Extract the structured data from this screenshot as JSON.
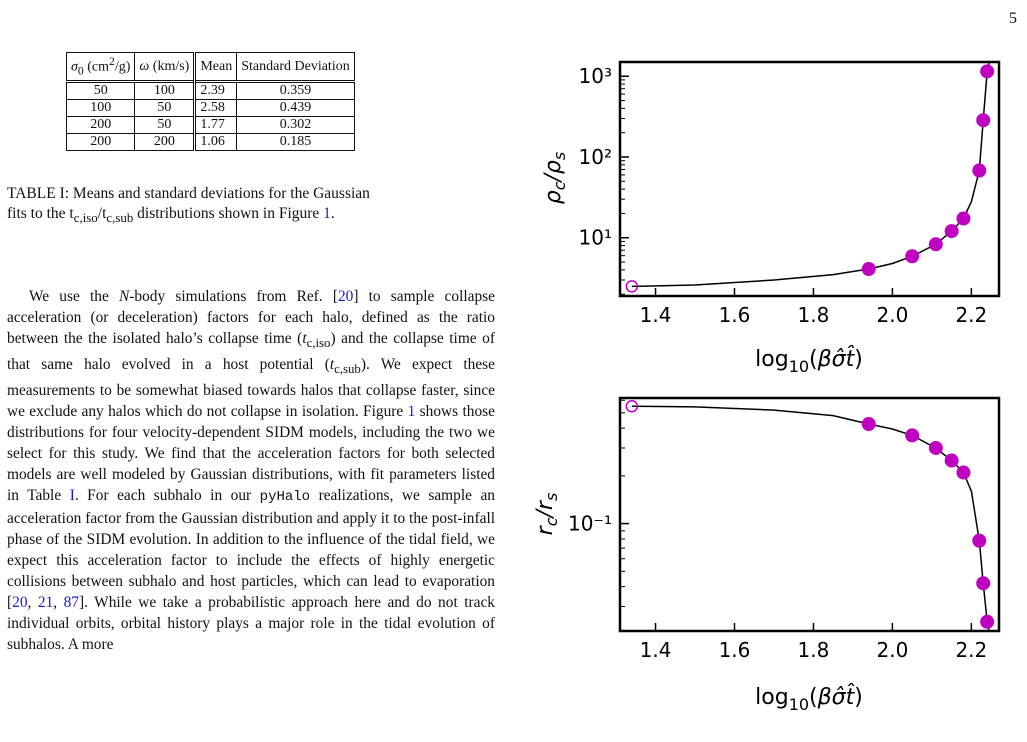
{
  "page_number": "5",
  "table": {
    "headers": [
      "σ0 (cm²/g)",
      "ω (km/s)",
      "Mean",
      "Standard Deviation"
    ],
    "rows": [
      [
        "50",
        "100",
        "2.39",
        "0.359"
      ],
      [
        "100",
        "50",
        "2.58",
        "0.439"
      ],
      [
        "200",
        "50",
        "1.77",
        "0.302"
      ],
      [
        "200",
        "200",
        "1.06",
        "0.185"
      ]
    ]
  },
  "caption": {
    "line1": "TABLE I: Means and standard deviations for the Gaussian",
    "line2_a": "fits to the t",
    "line2_sub1": "c,iso",
    "line2_b": "/t",
    "line2_sub2": "c,sub",
    "line2_c": " distributions shown in Figure ",
    "line2_ref": "1",
    "line2_end": "."
  },
  "body": {
    "s1": "We use the ",
    "s1_italic": "N",
    "s2": "-body simulations from Ref. [",
    "ref20": "20",
    "s3": "] to sample collapse acceleration (or deceleration) factors for each halo, defined as the ratio between the the isolated halo’s collapse time (",
    "t_iso_a": "t",
    "t_iso_sub": "c,iso",
    "s4": ") and the collapse time of that same halo evolved in a host potential (",
    "t_sub_a": "t",
    "t_sub_sub": "c,sub",
    "s5": "). We expect these measurements to be somewhat biased towards halos that collapse faster, since we exclude any halos which do not collapse in isolation. Figure ",
    "ref_fig": "1",
    "s6": " shows those distributions for four velocity-dependent SIDM models, including the two we select for this study. We find that the acceleration factors for both selected models are well modeled by Gaussian distributions, with fit parameters listed in Table ",
    "ref_table": "I",
    "s7": ". For each subhalo in our ",
    "pyhalo": "pyHalo",
    "s8": " realizations, we sample an acceleration factor from the Gaussian distribution and apply it to the post-infall phase of the SIDM evolution. In addition to the influence of the tidal field, we expect this acceleration factor to include the effects of highly energetic collisions between subhalo and host particles, which can lead to evaporation [",
    "ref_a": "20",
    "comma1": ", ",
    "ref_b": "21",
    "comma2": ", ",
    "ref_c": "87",
    "s9": "]. While we take a probabilistic approach here and do not track individual orbits, orbital history plays a major role in the tidal evolution of subhalos. A more"
  },
  "colors": {
    "accent_points": "#c000c0",
    "cite": "#1a1ad6",
    "line": "#000000"
  },
  "chart_data": [
    {
      "type": "line",
      "xlabel": "log10(βσ̂t̂)",
      "ylabel": "ρc/ρs",
      "yscale": "log",
      "xlim": [
        1.31,
        2.27
      ],
      "ylim": [
        1.9,
        1500
      ],
      "xticks": [
        1.4,
        1.6,
        1.8,
        2.0,
        2.2
      ],
      "xtick_labels": [
        "1.4",
        "1.6",
        "1.8",
        "2.0",
        "2.2"
      ],
      "yticks": [
        10,
        100,
        1000
      ],
      "ytick_labels": [
        "10¹",
        "10²",
        "10³"
      ],
      "grid": false,
      "points": {
        "x": [
          1.34,
          1.94,
          2.05,
          2.11,
          2.15,
          2.18,
          2.22,
          2.23,
          2.24
        ],
        "y": [
          2.5,
          4.1,
          5.9,
          8.3,
          12.1,
          17.3,
          68,
          285,
          1150
        ],
        "hollow_first": true
      },
      "curve": {
        "x": [
          1.34,
          1.5,
          1.7,
          1.85,
          1.94,
          2.0,
          2.05,
          2.11,
          2.15,
          2.18,
          2.2,
          2.22,
          2.23,
          2.24,
          2.245
        ],
        "y": [
          2.5,
          2.6,
          3.0,
          3.5,
          4.1,
          4.8,
          5.9,
          8.3,
          12.1,
          17.3,
          28,
          68,
          285,
          1150,
          1500
        ]
      }
    },
    {
      "type": "line",
      "xlabel": "log10(βσ̂t̂)",
      "ylabel": "rc/rs",
      "yscale": "log",
      "xlim": [
        1.31,
        2.27
      ],
      "ylim": [
        0.021,
        0.62
      ],
      "xticks": [
        1.4,
        1.6,
        1.8,
        2.0,
        2.2
      ],
      "xtick_labels": [
        "1.4",
        "1.6",
        "1.8",
        "2.0",
        "2.2"
      ],
      "yticks": [
        0.1
      ],
      "ytick_labels": [
        "10⁻¹"
      ],
      "grid": false,
      "points": {
        "x": [
          1.34,
          1.94,
          2.05,
          2.11,
          2.15,
          2.18,
          2.22,
          2.23,
          2.24
        ],
        "y": [
          0.55,
          0.425,
          0.36,
          0.3,
          0.25,
          0.21,
          0.078,
          0.042,
          0.024
        ],
        "hollow_first": true
      },
      "curve": {
        "x": [
          1.34,
          1.5,
          1.7,
          1.85,
          1.94,
          2.0,
          2.05,
          2.11,
          2.15,
          2.18,
          2.2,
          2.22,
          2.23,
          2.24,
          2.245
        ],
        "y": [
          0.55,
          0.545,
          0.52,
          0.48,
          0.425,
          0.395,
          0.36,
          0.3,
          0.25,
          0.21,
          0.16,
          0.078,
          0.042,
          0.024,
          0.021
        ]
      }
    }
  ]
}
